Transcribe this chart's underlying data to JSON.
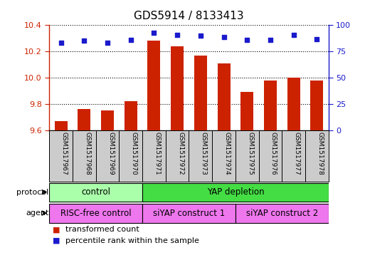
{
  "title": "GDS5914 / 8133413",
  "samples": [
    "GSM1517967",
    "GSM1517968",
    "GSM1517969",
    "GSM1517970",
    "GSM1517971",
    "GSM1517972",
    "GSM1517973",
    "GSM1517974",
    "GSM1517975",
    "GSM1517976",
    "GSM1517977",
    "GSM1517978"
  ],
  "bar_values": [
    9.67,
    9.76,
    9.75,
    9.82,
    10.28,
    10.24,
    10.17,
    10.11,
    9.89,
    9.98,
    10.0,
    9.98
  ],
  "percentile_values": [
    83,
    85,
    83,
    86,
    93,
    91,
    90,
    89,
    86,
    86,
    91,
    87
  ],
  "ylim_left": [
    9.6,
    10.4
  ],
  "ylim_right": [
    0,
    100
  ],
  "yticks_left": [
    9.6,
    9.8,
    10.0,
    10.2,
    10.4
  ],
  "yticks_right": [
    0,
    25,
    50,
    75,
    100
  ],
  "bar_color": "#cc2200",
  "dot_color": "#1a1acc",
  "bg_color": "#ffffff",
  "protocol_labels": [
    {
      "text": "control",
      "start": 0,
      "end": 4,
      "color": "#aaffaa"
    },
    {
      "text": "YAP depletion",
      "start": 4,
      "end": 12,
      "color": "#44dd44"
    }
  ],
  "agent_labels": [
    {
      "text": "RISC-free control",
      "start": 0,
      "end": 4,
      "color": "#ee77ee"
    },
    {
      "text": "siYAP construct 1",
      "start": 4,
      "end": 8,
      "color": "#ee77ee"
    },
    {
      "text": "siYAP construct 2",
      "start": 8,
      "end": 12,
      "color": "#ee77ee"
    }
  ],
  "legend_items": [
    {
      "label": "transformed count",
      "color": "#cc2200"
    },
    {
      "label": "percentile rank within the sample",
      "color": "#1a1acc"
    }
  ],
  "label_protocol": "protocol",
  "label_agent": "agent",
  "tick_label_color": "#cc2200",
  "right_tick_color": "#1a1acc",
  "bar_width": 0.55,
  "sample_box_color": "#cccccc"
}
